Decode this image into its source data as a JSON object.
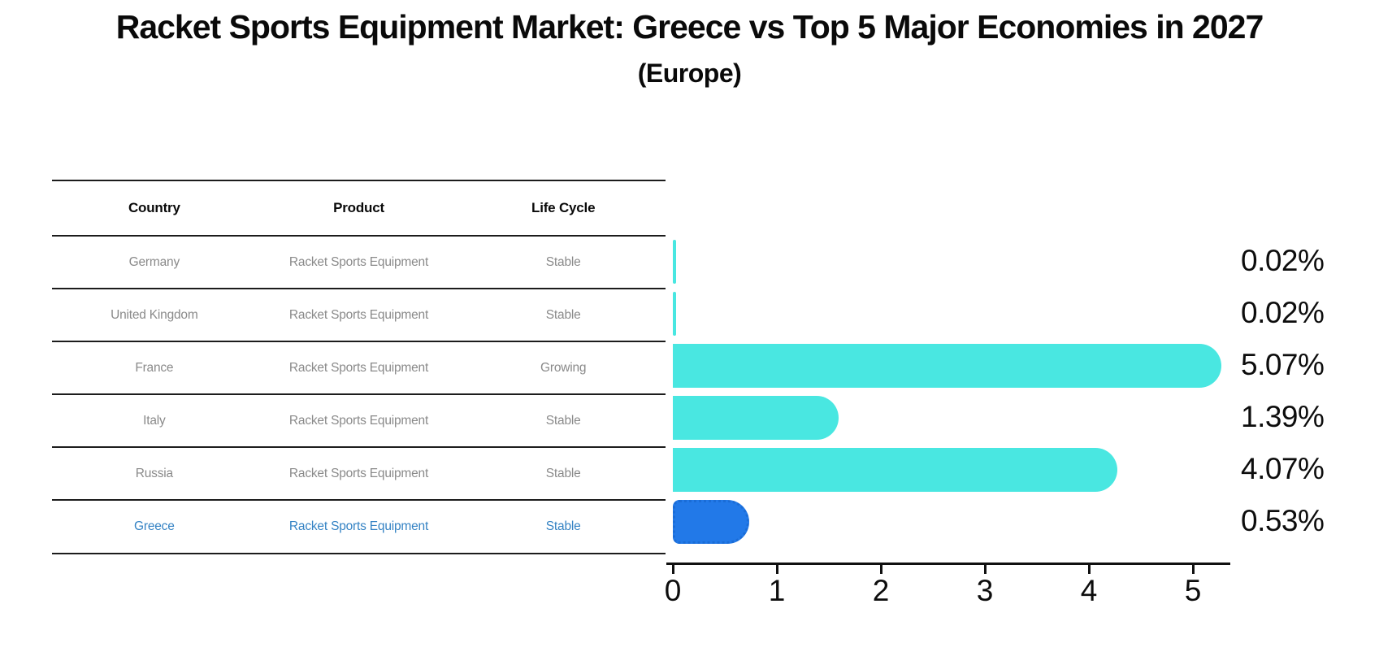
{
  "title": "Racket Sports Equipment Market: Greece vs Top 5 Major Economies in 2027",
  "subtitle": "(Europe)",
  "table": {
    "headers": [
      "Country",
      "Product",
      "Life Cycle"
    ],
    "rows": [
      {
        "country": "Germany",
        "product": "Racket Sports Equipment",
        "life_cycle": "Stable",
        "highlight": false
      },
      {
        "country": "United Kingdom",
        "product": "Racket Sports Equipment",
        "life_cycle": "Stable",
        "highlight": false
      },
      {
        "country": "France",
        "product": "Racket Sports Equipment",
        "life_cycle": "Growing",
        "highlight": false
      },
      {
        "country": "Italy",
        "product": "Racket Sports Equipment",
        "life_cycle": "Stable",
        "highlight": false
      },
      {
        "country": "Russia",
        "product": "Racket Sports Equipment",
        "life_cycle": "Stable",
        "highlight": false
      },
      {
        "country": "Greece",
        "product": "Racket Sports Equipment",
        "life_cycle": "Stable",
        "highlight": true
      }
    ]
  },
  "chart_data": {
    "type": "bar",
    "orientation": "horizontal",
    "title": "Racket Sports Equipment Market: Greece vs Top 5 Major Economies in 2027",
    "subtitle": "(Europe)",
    "categories": [
      "Germany",
      "United Kingdom",
      "France",
      "Italy",
      "Russia",
      "Greece"
    ],
    "values": [
      0.02,
      0.02,
      5.07,
      1.39,
      4.07,
      0.53
    ],
    "value_labels": [
      "0.02%",
      "0.02%",
      "5.07%",
      "1.39%",
      "4.07%",
      "0.53%"
    ],
    "xlim": [
      0,
      5.4
    ],
    "x_ticks": [
      "0",
      "1",
      "2",
      "3",
      "4",
      "5"
    ],
    "grid": false,
    "legend": "none",
    "bar_color": "#49E7E1",
    "highlight_bar_color": "#2279E8",
    "highlight_index": 5
  },
  "colors": {
    "title_text": "#0a0a0a",
    "row_text": "#8a8a8a",
    "highlight_text": "#3583c4",
    "table_line": "#1c1c1c",
    "axis": "#101010"
  }
}
